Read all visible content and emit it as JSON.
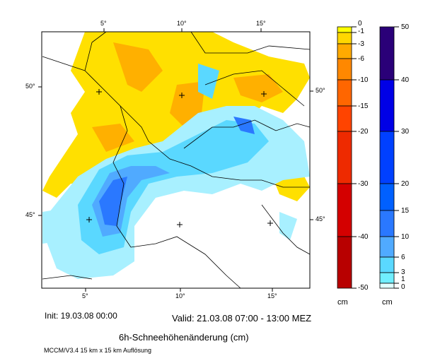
{
  "map": {
    "lon_labels_top": [
      "5°",
      "10°",
      "15°"
    ],
    "lon_labels_bottom": [
      "5°",
      "10°",
      "15°"
    ],
    "lat_labels_left": [
      "50°",
      "45°"
    ],
    "lat_labels_right": [
      "50°",
      "45°"
    ],
    "colors": {
      "yellow": "#ffe000",
      "light_orange": "#ffb000",
      "pale_cyan": "#a8f0ff",
      "cyan": "#5ad8ff",
      "light_blue": "#50aaff",
      "blue": "#2a78ff",
      "dark_blue": "#0a50ff"
    }
  },
  "colorbar_negative": {
    "unit": "cm",
    "labels": [
      "0",
      "-1",
      "-3",
      "-6",
      "-10",
      "-15",
      "-20",
      "-30",
      "-40",
      "-50"
    ],
    "colors": [
      "#ffff00",
      "#ffd700",
      "#ffaa00",
      "#ff8800",
      "#ff6600",
      "#ff4400",
      "#ee2a00",
      "#d40000",
      "#b80000"
    ]
  },
  "colorbar_positive": {
    "unit": "cm",
    "labels": [
      "50",
      "40",
      "30",
      "20",
      "15",
      "10",
      "6",
      "3",
      "1",
      "0"
    ],
    "colors": [
      "#2a0078",
      "#0000e6",
      "#0040ff",
      "#0060ff",
      "#2a78ff",
      "#50aaff",
      "#5ad8ff",
      "#70eeff",
      "#e0ffff"
    ]
  },
  "footer": {
    "init": "Init: 19.03.08 00:00",
    "valid": "Valid: 21.03.08 07:00 - 13:00 MEZ",
    "title": "6h-Schneehöhenänderung (cm)",
    "model": "MCCM/V3.4 15 km x 15 km Auflösung"
  }
}
